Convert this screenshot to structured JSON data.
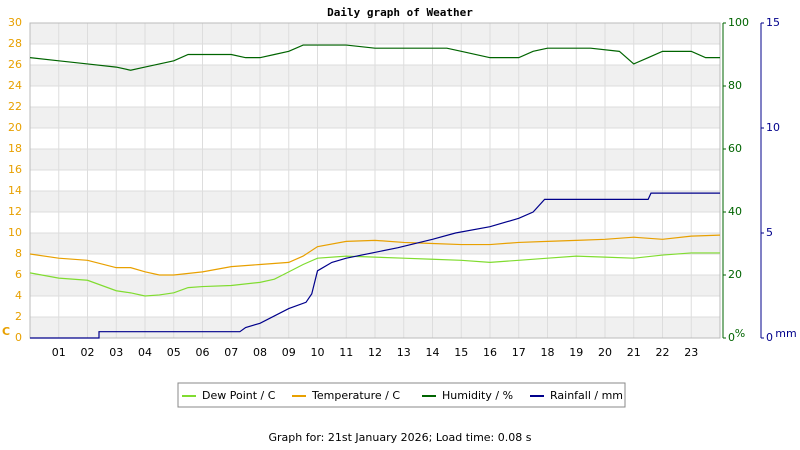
{
  "chart_data": {
    "type": "line",
    "title": "Daily graph of Weather",
    "xlim": [
      0,
      24
    ],
    "xticks": [
      {
        "value": 1,
        "label": "01"
      },
      {
        "value": 2,
        "label": "02"
      },
      {
        "value": 3,
        "label": "03"
      },
      {
        "value": 4,
        "label": "04"
      },
      {
        "value": 5,
        "label": "05"
      },
      {
        "value": 6,
        "label": "06"
      },
      {
        "value": 7,
        "label": "07"
      },
      {
        "value": 8,
        "label": "08"
      },
      {
        "value": 9,
        "label": "09"
      },
      10,
      11,
      12,
      13,
      14,
      15,
      16,
      17,
      18,
      19,
      20,
      21,
      22,
      23
    ],
    "ylabel": "C",
    "ylim": [
      0,
      30
    ],
    "yticks": [
      0,
      2,
      4,
      6,
      8,
      10,
      12,
      14,
      16,
      18,
      20,
      22,
      24,
      26,
      28,
      30
    ],
    "ycolor": "#e8a000",
    "y2label": "%",
    "y2lim": [
      0,
      100
    ],
    "y2ticks": [
      0,
      20,
      40,
      60,
      80,
      100
    ],
    "y2color": "#006400",
    "y3label": "mm",
    "y3lim": [
      0,
      15
    ],
    "y3ticks": [
      0,
      5,
      10,
      15
    ],
    "y3color": "#00008b",
    "grid": true,
    "series": [
      {
        "name": "Dew Point / C",
        "color": "#80dc30",
        "axis": "y",
        "x": [
          0,
          1,
          2,
          3,
          3.5,
          4,
          4.5,
          5,
          5.5,
          6,
          7,
          8,
          8.5,
          9,
          9.5,
          10,
          11,
          12,
          13,
          14,
          15,
          16,
          17,
          18,
          19,
          20,
          21,
          22,
          23,
          24
        ],
        "values": [
          6.2,
          5.7,
          5.5,
          4.5,
          4.3,
          4.0,
          4.1,
          4.3,
          4.8,
          4.9,
          5.0,
          5.3,
          5.6,
          6.3,
          7.0,
          7.6,
          7.8,
          7.7,
          7.6,
          7.5,
          7.4,
          7.2,
          7.4,
          7.6,
          7.8,
          7.7,
          7.6,
          7.9,
          8.1,
          8.1
        ]
      },
      {
        "name": "Temperature / C",
        "color": "#e8a000",
        "axis": "y",
        "x": [
          0,
          1,
          2,
          3,
          3.5,
          4,
          4.5,
          5,
          6,
          7,
          8,
          9,
          9.5,
          10,
          11,
          12,
          13,
          14,
          15,
          16,
          17,
          18,
          19,
          20,
          21,
          22,
          23,
          24
        ],
        "values": [
          8.0,
          7.6,
          7.4,
          6.7,
          6.7,
          6.3,
          6.0,
          6.0,
          6.3,
          6.8,
          7.0,
          7.2,
          7.8,
          8.7,
          9.2,
          9.3,
          9.1,
          9.0,
          8.9,
          8.9,
          9.1,
          9.2,
          9.3,
          9.4,
          9.6,
          9.4,
          9.7,
          9.8
        ]
      },
      {
        "name": "Humidity / %",
        "color": "#006400",
        "axis": "y2",
        "x": [
          0,
          1,
          2,
          3,
          3.5,
          4,
          4.5,
          5,
          5.5,
          7,
          7.5,
          8,
          8.5,
          9,
          9.5,
          11,
          12,
          14.5,
          15,
          16,
          17,
          17.5,
          18,
          19.5,
          20.5,
          21,
          21.5,
          22,
          23,
          23.5,
          24
        ],
        "values": [
          89,
          88,
          87,
          86,
          85,
          86,
          87,
          88,
          90,
          90,
          89,
          89,
          90,
          91,
          93,
          93,
          92,
          92,
          91,
          89,
          89,
          91,
          92,
          92,
          91,
          87,
          89,
          91,
          91,
          89,
          89
        ]
      },
      {
        "name": "Rainfall / mm",
        "color": "#00008b",
        "axis": "y3",
        "x": [
          0,
          2.4,
          2.4,
          7.3,
          7.5,
          8,
          9,
          9.6,
          9.8,
          10,
          10.5,
          11,
          12.8,
          14,
          14.8,
          16,
          17,
          17.5,
          17.9,
          21.5,
          21.6,
          24
        ],
        "values": [
          0,
          0,
          0.3,
          0.3,
          0.5,
          0.7,
          1.4,
          1.7,
          2.1,
          3.2,
          3.6,
          3.8,
          4.3,
          4.7,
          5.0,
          5.3,
          5.7,
          6.0,
          6.6,
          6.6,
          6.9,
          6.9
        ]
      }
    ]
  },
  "footer": "Graph for: 21st January 2026; Load time: 0.08 s"
}
